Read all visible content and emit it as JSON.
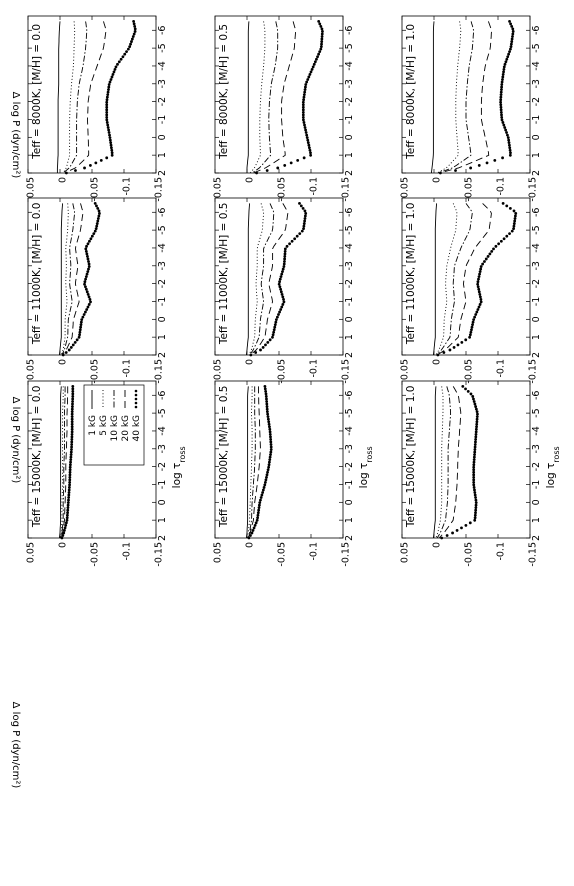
{
  "figure": {
    "ylabel": "Δ log P (dyn/cm²)",
    "xlabel": "log τ_ross",
    "xlim": [
      -6.8,
      2
    ],
    "ylim": [
      -0.15,
      0.05
    ],
    "x_ticks": [
      "-6",
      "-5",
      "-4",
      "-3",
      "-2",
      "-1",
      "0",
      "1",
      "2"
    ],
    "y_ticks": [
      "0.05",
      "0",
      "-0.05",
      "-0.1",
      "-0.15"
    ],
    "legend": [
      "1 kG",
      "5 kG",
      "10 kG",
      "20 kG",
      "40 kG"
    ],
    "legend_location": "lower-left of the 15000K, [M/H] = 0.0 panel"
  },
  "chart_data": [
    {
      "type": "line",
      "title": "Teff = 8000K, [M/H] = 0.0",
      "xlim": [
        -6.8,
        2
      ],
      "ylim": [
        -0.15,
        0.05
      ],
      "x": [
        -6.5,
        -6,
        -5,
        -4,
        -3,
        -2,
        -1,
        0,
        1,
        1.7,
        2
      ],
      "series": [
        {
          "name": "1 kG",
          "values": [
            0.0,
            0.001,
            0.002,
            0.002,
            0.002,
            0.003,
            0.003,
            0.003,
            0.003,
            0.004,
            0.004
          ]
        },
        {
          "name": "5 kG",
          "values": [
            -0.022,
            -0.023,
            -0.022,
            -0.021,
            -0.018,
            -0.016,
            -0.015,
            -0.015,
            -0.015,
            -0.01,
            -0.005
          ]
        },
        {
          "name": "10 kG",
          "values": [
            -0.04,
            -0.042,
            -0.04,
            -0.036,
            -0.03,
            -0.027,
            -0.026,
            -0.026,
            -0.026,
            -0.015,
            -0.005
          ]
        },
        {
          "name": "20 kG",
          "values": [
            -0.068,
            -0.072,
            -0.068,
            -0.058,
            -0.048,
            -0.044,
            -0.043,
            -0.044,
            -0.045,
            -0.025,
            -0.007
          ]
        },
        {
          "name": "40 kG",
          "values": [
            -0.115,
            -0.118,
            -0.108,
            -0.088,
            -0.077,
            -0.073,
            -0.073,
            -0.078,
            -0.082,
            -0.04,
            -0.01
          ]
        }
      ]
    },
    {
      "type": "line",
      "title": "Teff = 8000K, [M/H] = 0.5",
      "xlim": [
        -6.8,
        2
      ],
      "ylim": [
        -0.15,
        0.05
      ],
      "x": [
        -6.5,
        -6,
        -5,
        -4,
        -3,
        -2,
        -1,
        0,
        1,
        1.7,
        2
      ],
      "series": [
        {
          "name": "1 kG",
          "values": [
            -0.003,
            -0.002,
            -0.002,
            -0.002,
            -0.002,
            -0.002,
            -0.002,
            -0.002,
            -0.002,
            0.0,
            0.0
          ]
        },
        {
          "name": "5 kG",
          "values": [
            -0.026,
            -0.028,
            -0.028,
            -0.026,
            -0.023,
            -0.021,
            -0.02,
            -0.02,
            -0.021,
            -0.012,
            -0.005
          ]
        },
        {
          "name": "10 kG",
          "values": [
            -0.045,
            -0.048,
            -0.048,
            -0.044,
            -0.038,
            -0.035,
            -0.034,
            -0.035,
            -0.037,
            -0.02,
            -0.008
          ]
        },
        {
          "name": "20 kG",
          "values": [
            -0.072,
            -0.076,
            -0.074,
            -0.066,
            -0.058,
            -0.054,
            -0.054,
            -0.056,
            -0.06,
            -0.03,
            -0.01
          ]
        },
        {
          "name": "40 kG",
          "values": [
            -0.112,
            -0.118,
            -0.116,
            -0.104,
            -0.092,
            -0.088,
            -0.088,
            -0.094,
            -0.1,
            -0.05,
            -0.015
          ]
        }
      ]
    },
    {
      "type": "line",
      "title": "Teff = 8000K, [M/H] = 1.0",
      "xlim": [
        -6.8,
        2
      ],
      "ylim": [
        -0.15,
        0.05
      ],
      "x": [
        -6.5,
        -6,
        -5,
        -4,
        -3,
        -2,
        -1,
        0,
        1,
        1.7,
        2
      ],
      "series": [
        {
          "name": "1 kG",
          "values": [
            0.0,
            0.001,
            0.001,
            0.001,
            0.001,
            0.001,
            0.001,
            0.001,
            0.001,
            0.003,
            0.004
          ]
        },
        {
          "name": "5 kG",
          "values": [
            -0.04,
            -0.042,
            -0.04,
            -0.037,
            -0.035,
            -0.034,
            -0.034,
            -0.036,
            -0.038,
            -0.02,
            -0.005
          ]
        },
        {
          "name": "10 kG",
          "values": [
            -0.058,
            -0.062,
            -0.06,
            -0.055,
            -0.052,
            -0.05,
            -0.05,
            -0.054,
            -0.058,
            -0.03,
            -0.006
          ]
        },
        {
          "name": "20 kG",
          "values": [
            -0.085,
            -0.09,
            -0.088,
            -0.08,
            -0.076,
            -0.074,
            -0.074,
            -0.08,
            -0.086,
            -0.04,
            -0.008
          ]
        },
        {
          "name": "40 kG",
          "values": [
            -0.118,
            -0.124,
            -0.12,
            -0.11,
            -0.106,
            -0.104,
            -0.106,
            -0.116,
            -0.12,
            -0.06,
            -0.01
          ]
        }
      ]
    },
    {
      "type": "line",
      "title": "Teff = 11000K, [M/H] = 0.0",
      "xlim": [
        -6.8,
        2
      ],
      "ylim": [
        -0.15,
        0.05
      ],
      "x": [
        -6.5,
        -6,
        -5,
        -4,
        -3,
        -2,
        -1,
        0,
        1,
        1.7,
        2
      ],
      "series": [
        {
          "name": "1 kG",
          "values": [
            -0.004,
            -0.003,
            -0.002,
            -0.002,
            -0.002,
            -0.002,
            -0.002,
            -0.002,
            -0.002,
            0.0,
            0.001
          ]
        },
        {
          "name": "5 kG",
          "values": [
            -0.012,
            -0.013,
            -0.012,
            -0.009,
            -0.01,
            -0.009,
            -0.011,
            -0.008,
            -0.008,
            -0.005,
            -0.002
          ]
        },
        {
          "name": "10 kG",
          "values": [
            -0.02,
            -0.023,
            -0.02,
            -0.015,
            -0.017,
            -0.015,
            -0.019,
            -0.013,
            -0.012,
            -0.007,
            -0.003
          ]
        },
        {
          "name": "20 kG",
          "values": [
            -0.032,
            -0.036,
            -0.032,
            -0.024,
            -0.028,
            -0.024,
            -0.03,
            -0.021,
            -0.019,
            -0.01,
            -0.004
          ]
        },
        {
          "name": "40 kG",
          "values": [
            -0.055,
            -0.062,
            -0.056,
            -0.04,
            -0.046,
            -0.038,
            -0.048,
            -0.034,
            -0.03,
            -0.015,
            -0.005
          ]
        }
      ]
    },
    {
      "type": "line",
      "title": "Teff = 11000K, [M/H] = 0.5",
      "xlim": [
        -6.8,
        2
      ],
      "ylim": [
        -0.15,
        0.05
      ],
      "x": [
        -6.5,
        -6,
        -5,
        -4,
        -3,
        -2,
        -1,
        0,
        1,
        1.7,
        2
      ],
      "series": [
        {
          "name": "1 kG",
          "values": [
            -0.004,
            -0.003,
            -0.002,
            -0.002,
            -0.002,
            -0.002,
            -0.002,
            -0.002,
            -0.002,
            0.0,
            0.001
          ]
        },
        {
          "name": "5 kG",
          "values": [
            -0.022,
            -0.026,
            -0.024,
            -0.016,
            -0.016,
            -0.014,
            -0.016,
            -0.013,
            -0.012,
            -0.007,
            -0.003
          ]
        },
        {
          "name": "10 kG",
          "values": [
            -0.036,
            -0.042,
            -0.04,
            -0.026,
            -0.026,
            -0.022,
            -0.026,
            -0.021,
            -0.019,
            -0.01,
            -0.004
          ]
        },
        {
          "name": "20 kG",
          "values": [
            -0.056,
            -0.064,
            -0.06,
            -0.04,
            -0.04,
            -0.034,
            -0.04,
            -0.032,
            -0.028,
            -0.015,
            -0.005
          ]
        },
        {
          "name": "40 kG",
          "values": [
            -0.082,
            -0.092,
            -0.088,
            -0.06,
            -0.058,
            -0.05,
            -0.058,
            -0.046,
            -0.04,
            -0.022,
            -0.006
          ]
        }
      ]
    },
    {
      "type": "line",
      "title": "Teff = 11000K, [M/H] = 1.0",
      "xlim": [
        -6.8,
        2
      ],
      "ylim": [
        -0.15,
        0.05
      ],
      "x": [
        -6.5,
        -6,
        -5,
        -4,
        -3,
        -2,
        -1,
        0,
        1,
        1.7,
        2
      ],
      "series": [
        {
          "name": "1 kG",
          "values": [
            -0.004,
            -0.003,
            -0.002,
            -0.002,
            -0.002,
            -0.002,
            -0.002,
            -0.002,
            -0.002,
            0.0,
            0.001
          ]
        },
        {
          "name": "5 kG",
          "values": [
            -0.03,
            -0.036,
            -0.034,
            -0.026,
            -0.02,
            -0.018,
            -0.02,
            -0.016,
            -0.015,
            -0.008,
            -0.003
          ]
        },
        {
          "name": "10 kG",
          "values": [
            -0.05,
            -0.06,
            -0.056,
            -0.042,
            -0.032,
            -0.03,
            -0.032,
            -0.027,
            -0.025,
            -0.012,
            -0.004
          ]
        },
        {
          "name": "20 kG",
          "values": [
            -0.076,
            -0.09,
            -0.086,
            -0.064,
            -0.05,
            -0.046,
            -0.05,
            -0.042,
            -0.038,
            -0.018,
            -0.005
          ]
        },
        {
          "name": "40 kG",
          "values": [
            -0.108,
            -0.128,
            -0.124,
            -0.094,
            -0.074,
            -0.068,
            -0.074,
            -0.062,
            -0.056,
            -0.026,
            -0.006
          ]
        }
      ]
    },
    {
      "type": "line",
      "title": "Teff = 15000K, [M/H] = 0.0",
      "xlim": [
        -6.8,
        2
      ],
      "ylim": [
        -0.15,
        0.05
      ],
      "x": [
        -6.5,
        -6,
        -5,
        -4,
        -3,
        -2,
        -1,
        0,
        1,
        1.7,
        2
      ],
      "series": [
        {
          "name": "1 kG",
          "values": [
            -0.002,
            -0.001,
            -0.001,
            -0.001,
            -0.001,
            -0.001,
            -0.001,
            -0.001,
            -0.001,
            0.0,
            0.001
          ]
        },
        {
          "name": "5 kG",
          "values": [
            -0.005,
            -0.005,
            -0.004,
            -0.004,
            -0.004,
            -0.004,
            -0.004,
            -0.003,
            -0.003,
            -0.002,
            -0.001
          ]
        },
        {
          "name": "10 kG",
          "values": [
            -0.008,
            -0.008,
            -0.007,
            -0.007,
            -0.007,
            -0.006,
            -0.006,
            -0.005,
            -0.005,
            -0.003,
            -0.001
          ]
        },
        {
          "name": "20 kG",
          "values": [
            -0.012,
            -0.012,
            -0.011,
            -0.011,
            -0.01,
            -0.009,
            -0.009,
            -0.008,
            -0.007,
            -0.004,
            -0.002
          ]
        },
        {
          "name": "40 kG",
          "values": [
            -0.02,
            -0.02,
            -0.019,
            -0.019,
            -0.018,
            -0.016,
            -0.015,
            -0.013,
            -0.011,
            -0.006,
            -0.003
          ]
        }
      ]
    },
    {
      "type": "line",
      "title": "Teff = 15000K, [M/H] = 0.5",
      "xlim": [
        -6.8,
        2
      ],
      "ylim": [
        -0.15,
        0.05
      ],
      "x": [
        -6.5,
        -6,
        -5,
        -4,
        -3,
        -2,
        -1,
        0,
        1,
        1.7,
        2
      ],
      "series": [
        {
          "name": "1 kG",
          "values": [
            -0.002,
            -0.001,
            -0.001,
            -0.001,
            -0.001,
            -0.001,
            -0.001,
            -0.001,
            -0.001,
            0.0,
            0.001
          ]
        },
        {
          "name": "5 kG",
          "values": [
            -0.008,
            -0.008,
            -0.007,
            -0.008,
            -0.008,
            -0.007,
            -0.006,
            -0.005,
            -0.004,
            -0.002,
            -0.001
          ]
        },
        {
          "name": "10 kG",
          "values": [
            -0.012,
            -0.012,
            -0.012,
            -0.013,
            -0.013,
            -0.012,
            -0.01,
            -0.008,
            -0.007,
            -0.004,
            -0.002
          ]
        },
        {
          "name": "20 kG",
          "values": [
            -0.018,
            -0.018,
            -0.019,
            -0.02,
            -0.021,
            -0.019,
            -0.016,
            -0.012,
            -0.01,
            -0.005,
            -0.002
          ]
        },
        {
          "name": "40 kG",
          "values": [
            -0.028,
            -0.03,
            -0.032,
            -0.036,
            -0.038,
            -0.034,
            -0.028,
            -0.02,
            -0.016,
            -0.008,
            -0.003
          ]
        }
      ]
    },
    {
      "type": "line",
      "title": "Teff = 15000K, [M/H] = 1.0",
      "xlim": [
        -6.8,
        2
      ],
      "ylim": [
        -0.15,
        0.05
      ],
      "x": [
        -6.5,
        -6,
        -5,
        -4,
        -3,
        -2,
        -1,
        0,
        1,
        1.7,
        2
      ],
      "series": [
        {
          "name": "1 kG",
          "values": [
            -0.003,
            -0.002,
            -0.002,
            -0.002,
            -0.002,
            -0.002,
            -0.002,
            -0.002,
            -0.002,
            0.0,
            0.001
          ]
        },
        {
          "name": "5 kG",
          "values": [
            -0.012,
            -0.014,
            -0.014,
            -0.013,
            -0.012,
            -0.012,
            -0.012,
            -0.012,
            -0.01,
            -0.006,
            -0.003
          ]
        },
        {
          "name": "10 kG",
          "values": [
            -0.02,
            -0.024,
            -0.026,
            -0.024,
            -0.022,
            -0.022,
            -0.022,
            -0.021,
            -0.018,
            -0.01,
            -0.005
          ]
        },
        {
          "name": "20 kG",
          "values": [
            -0.03,
            -0.038,
            -0.042,
            -0.04,
            -0.038,
            -0.037,
            -0.036,
            -0.034,
            -0.03,
            -0.016,
            -0.008
          ]
        },
        {
          "name": "40 kG",
          "values": [
            -0.045,
            -0.06,
            -0.068,
            -0.066,
            -0.064,
            -0.062,
            -0.062,
            -0.066,
            -0.064,
            -0.03,
            -0.012
          ]
        }
      ]
    }
  ]
}
